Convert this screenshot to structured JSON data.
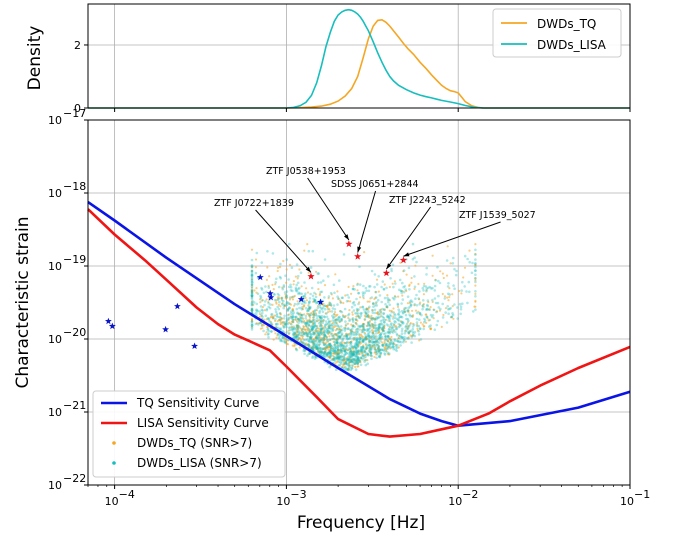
{
  "chart_data": [
    {
      "type": "line",
      "panel": "top",
      "ylabel": "Density",
      "xscale": "log",
      "xlim": [
        7e-05,
        0.1
      ],
      "ylim": [
        0,
        3.3
      ],
      "yticks": [
        0,
        2
      ],
      "yticklabels": [
        "0",
        "2"
      ],
      "grid": true,
      "legend_position": "top-right",
      "series": [
        {
          "name": "DWDs_TQ",
          "color": "#f5a623",
          "x": [
            0.0008,
            0.001,
            0.0012,
            0.0014,
            0.0016,
            0.0018,
            0.002,
            0.0022,
            0.0024,
            0.0026,
            0.0028,
            0.003,
            0.0032,
            0.0034,
            0.0036,
            0.0038,
            0.004,
            0.0042,
            0.0045,
            0.0048,
            0.0051,
            0.0055,
            0.006,
            0.0065,
            0.007,
            0.0075,
            0.008,
            0.0085,
            0.009,
            0.0095,
            0.01,
            0.0105,
            0.011,
            0.012,
            0.013,
            0.014
          ],
          "values": [
            0.0,
            0.0,
            0.01,
            0.03,
            0.06,
            0.12,
            0.22,
            0.38,
            0.62,
            1.0,
            1.6,
            2.2,
            2.6,
            2.78,
            2.8,
            2.72,
            2.6,
            2.45,
            2.25,
            2.05,
            1.88,
            1.7,
            1.45,
            1.25,
            1.05,
            0.88,
            0.72,
            0.62,
            0.55,
            0.52,
            0.48,
            0.34,
            0.2,
            0.07,
            0.02,
            0.0
          ]
        },
        {
          "name": "DWDs_LISA",
          "color": "#17bebe",
          "x": [
            0.0008,
            0.001,
            0.0011,
            0.0012,
            0.0013,
            0.0014,
            0.0015,
            0.0016,
            0.0017,
            0.0018,
            0.0019,
            0.002,
            0.0021,
            0.0022,
            0.0023,
            0.0024,
            0.0025,
            0.0026,
            0.0027,
            0.0028,
            0.0029,
            0.003,
            0.0032,
            0.0034,
            0.0036,
            0.0038,
            0.004,
            0.0042,
            0.0045,
            0.005,
            0.0055,
            0.006,
            0.0065,
            0.007,
            0.0075,
            0.008,
            0.009,
            0.01,
            0.011,
            0.0125,
            0.014
          ],
          "values": [
            0.0,
            0.0,
            0.02,
            0.07,
            0.18,
            0.4,
            0.8,
            1.35,
            1.95,
            2.4,
            2.75,
            2.95,
            3.05,
            3.1,
            3.12,
            3.1,
            3.05,
            2.98,
            2.88,
            2.75,
            2.6,
            2.45,
            2.1,
            1.75,
            1.45,
            1.2,
            1.0,
            0.86,
            0.72,
            0.58,
            0.48,
            0.41,
            0.36,
            0.32,
            0.28,
            0.24,
            0.19,
            0.14,
            0.08,
            0.02,
            0.0
          ]
        }
      ],
      "legend": [
        {
          "label": "DWDs_TQ",
          "color": "#f5a623"
        },
        {
          "label": "DWDs_LISA",
          "color": "#17bebe"
        }
      ]
    },
    {
      "type": "scatter",
      "panel": "bottom",
      "xlabel": "Frequency [Hz]",
      "ylabel": "Characteristic strain",
      "xscale": "log",
      "yscale": "log",
      "xlim": [
        7e-05,
        0.1
      ],
      "ylim": [
        1e-22,
        1e-17
      ],
      "xticks": [
        0.0001,
        0.001,
        0.01,
        0.1
      ],
      "xticklabels": [
        [
          "10",
          "−4"
        ],
        [
          "10",
          "−3"
        ],
        [
          "10",
          "−2"
        ],
        [
          "10",
          "−1"
        ]
      ],
      "yticks": [
        1e-22,
        1e-21,
        1e-20,
        1e-19,
        1e-18,
        1e-17
      ],
      "yticklabels": [
        [
          "10",
          "−22"
        ],
        [
          "10",
          "−21"
        ],
        [
          "10",
          "−20"
        ],
        [
          "10",
          "−19"
        ],
        [
          "10",
          "−18"
        ],
        [
          "10",
          "−17"
        ]
      ],
      "grid": true,
      "legend_position": "lower-left",
      "curves": [
        {
          "name": "TQ Sensitivity Curve",
          "color": "#0a14e6",
          "f": [
            7e-05,
            0.0001,
            0.0002,
            0.0005,
            0.001,
            0.002,
            0.004,
            0.006,
            0.008,
            0.01,
            0.02,
            0.05,
            0.1
          ],
          "h": [
            7.5e-19,
            4.2e-19,
            1.3e-19,
            3e-20,
            1.1e-20,
            4e-21,
            1.5e-21,
            9.5e-22,
            7.5e-22,
            6.5e-22,
            7.5e-22,
            1.15e-21,
            1.9e-21
          ]
        },
        {
          "name": "LISA Sensitivity Curve",
          "color": "#f01414",
          "f": [
            7e-05,
            0.0001,
            0.00015,
            0.0002,
            0.0003,
            0.0004,
            0.0005,
            0.0006,
            0.0008,
            0.001,
            0.0015,
            0.002,
            0.003,
            0.004,
            0.006,
            0.008,
            0.01,
            0.015,
            0.02,
            0.03,
            0.05,
            0.1
          ],
          "h": [
            6e-19,
            2.7e-19,
            1.2e-19,
            6.5e-20,
            2.7e-20,
            1.6e-20,
            1.15e-20,
            9.5e-21,
            7e-21,
            4.2e-21,
            1.6e-21,
            8e-22,
            5e-22,
            4.6e-22,
            5e-22,
            5.8e-22,
            6.5e-22,
            9.5e-22,
            1.4e-21,
            2.3e-21,
            4e-21,
            7.8e-21
          ]
        }
      ],
      "scatter_series": [
        {
          "name": "DWDs_TQ (SNR>7)",
          "color": "#f5a623",
          "marker": "dot"
        },
        {
          "name": "DWDs_LISA (SNR>7)",
          "color": "#17bebe",
          "marker": "dot"
        }
      ],
      "blue_stars": {
        "color": "#0a14c8",
        "f": [
          9.2e-05,
          9.7e-05,
          0.000198,
          0.000232,
          0.000292,
          0.000705,
          0.000805,
          0.000812,
          0.00122,
          0.00158
        ],
        "h": [
          1.75e-20,
          1.5e-20,
          1.35e-20,
          2.8e-20,
          8e-21,
          7e-20,
          4.2e-20,
          3.7e-20,
          3.5e-20,
          3.2e-20
        ]
      },
      "red_stars": {
        "color": "#e8141e",
        "points": [
          {
            "label": "ZTF J0722+1839",
            "f": 0.00139,
            "h": 7.2e-20
          },
          {
            "label": "ZTF J0538+1953",
            "f": 0.00231,
            "h": 2e-19
          },
          {
            "label": "SDSS J0651+2844",
            "f": 0.0026,
            "h": 1.35e-19
          },
          {
            "label": "ZTF J2243_5242",
            "f": 0.00382,
            "h": 8e-20
          },
          {
            "label": "ZTF J1539_5027",
            "f": 0.0048,
            "h": 1.2e-19
          }
        ]
      },
      "legend": [
        {
          "label": "TQ Sensitivity Curve",
          "color": "#0a14e6",
          "kind": "line"
        },
        {
          "label": "LISA Sensitivity Curve",
          "color": "#f01414",
          "kind": "line"
        },
        {
          "label": "DWDs_TQ (SNR>7)",
          "color": "#f5a623",
          "kind": "dot"
        },
        {
          "label": "DWDs_LISA (SNR>7)",
          "color": "#17bebe",
          "kind": "dot"
        }
      ]
    }
  ]
}
